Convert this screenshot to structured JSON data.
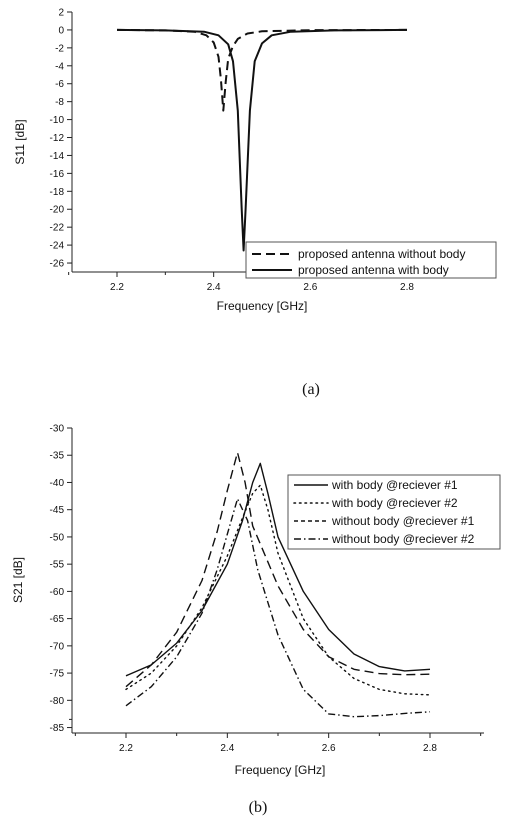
{
  "chart_data": [
    {
      "type": "line",
      "caption": "(a)",
      "xlabel": "Frequency [GHz]",
      "ylabel": "S11 [dB]",
      "xlim": [
        2.1,
        2.9
      ],
      "ylim": [
        -27,
        2
      ],
      "xticks": [
        2.2,
        2.4,
        2.6,
        2.8
      ],
      "xtick_labels": [
        "2.2",
        "2.4",
        "2.6",
        "2.8"
      ],
      "yticks": [
        2,
        0,
        -2,
        -4,
        -6,
        -8,
        -10,
        -12,
        -14,
        -16,
        -18,
        -20,
        -22,
        -24,
        -26
      ],
      "ytick_labels": [
        "2",
        "0",
        "-2",
        "-4",
        "-6",
        "-8",
        "-10",
        "-12",
        "-14",
        "-16",
        "-18",
        "-20",
        "-22",
        "-24",
        "-26"
      ],
      "legend_position": "bottom-right",
      "series": [
        {
          "name": "proposed antenna without body",
          "style": "dashed",
          "color": "#111111",
          "points": [
            [
              2.2,
              0
            ],
            [
              2.3,
              -0.05
            ],
            [
              2.36,
              -0.2
            ],
            [
              2.385,
              -0.6
            ],
            [
              2.4,
              -1.4
            ],
            [
              2.41,
              -3.0
            ],
            [
              2.415,
              -5.5
            ],
            [
              2.42,
              -9.0
            ],
            [
              2.425,
              -5.8
            ],
            [
              2.43,
              -3.2
            ],
            [
              2.44,
              -1.8
            ],
            [
              2.45,
              -1.0
            ],
            [
              2.47,
              -0.4
            ],
            [
              2.5,
              -0.15
            ],
            [
              2.6,
              -0.03
            ],
            [
              2.8,
              0
            ]
          ]
        },
        {
          "name": "proposed antenna with body",
          "style": "solid",
          "color": "#111111",
          "points": [
            [
              2.2,
              0
            ],
            [
              2.3,
              -0.05
            ],
            [
              2.38,
              -0.2
            ],
            [
              2.41,
              -0.6
            ],
            [
              2.43,
              -1.6
            ],
            [
              2.44,
              -3.5
            ],
            [
              2.45,
              -9.0
            ],
            [
              2.458,
              -20.0
            ],
            [
              2.462,
              -24.6
            ],
            [
              2.466,
              -20.0
            ],
            [
              2.475,
              -9.0
            ],
            [
              2.485,
              -3.5
            ],
            [
              2.5,
              -1.5
            ],
            [
              2.52,
              -0.6
            ],
            [
              2.56,
              -0.2
            ],
            [
              2.65,
              -0.05
            ],
            [
              2.8,
              0
            ]
          ]
        }
      ]
    },
    {
      "type": "line",
      "caption": "(b)",
      "xlabel": "Frequency [GHz]",
      "ylabel": "S21 [dB]",
      "xlim": [
        2.1,
        2.9
      ],
      "ylim": [
        -86,
        -30
      ],
      "xticks": [
        2.2,
        2.4,
        2.6,
        2.8
      ],
      "xtick_labels": [
        "2.2",
        "2.4",
        "2.6",
        "2.8"
      ],
      "yticks": [
        -30,
        -35,
        -40,
        -45,
        -50,
        -55,
        -60,
        -65,
        -70,
        -75,
        -80,
        -85
      ],
      "ytick_labels": [
        "-30",
        "-35",
        "-40",
        "-45",
        "-50",
        "-55",
        "-60",
        "-65",
        "-70",
        "-75",
        "-80",
        "-85"
      ],
      "legend_position": "top-right",
      "series": [
        {
          "name": "with body @reciever #1",
          "style": "solid",
          "color": "#111111",
          "points": [
            [
              2.2,
              -75.5
            ],
            [
              2.25,
              -73.5
            ],
            [
              2.3,
              -69.5
            ],
            [
              2.35,
              -63.5
            ],
            [
              2.4,
              -55
            ],
            [
              2.43,
              -47
            ],
            [
              2.45,
              -40
            ],
            [
              2.465,
              -36.5
            ],
            [
              2.48,
              -42
            ],
            [
              2.5,
              -50
            ],
            [
              2.55,
              -60
            ],
            [
              2.6,
              -67
            ],
            [
              2.65,
              -71.5
            ],
            [
              2.7,
              -73.8
            ],
            [
              2.75,
              -74.6
            ],
            [
              2.8,
              -74.3
            ]
          ]
        },
        {
          "name": "with body @reciever #2",
          "style": "dotted",
          "color": "#111111",
          "points": [
            [
              2.2,
              -78
            ],
            [
              2.25,
              -75
            ],
            [
              2.3,
              -70
            ],
            [
              2.35,
              -63
            ],
            [
              2.4,
              -53.5
            ],
            [
              2.43,
              -46.5
            ],
            [
              2.45,
              -42
            ],
            [
              2.465,
              -40.5
            ],
            [
              2.48,
              -45
            ],
            [
              2.5,
              -53
            ],
            [
              2.55,
              -65
            ],
            [
              2.6,
              -72
            ],
            [
              2.65,
              -76
            ],
            [
              2.7,
              -78
            ],
            [
              2.75,
              -78.8
            ],
            [
              2.8,
              -79
            ]
          ]
        },
        {
          "name": "without body @reciever #1",
          "style": "dashed",
          "color": "#111111",
          "points": [
            [
              2.2,
              -77.5
            ],
            [
              2.25,
              -73.5
            ],
            [
              2.3,
              -67.5
            ],
            [
              2.35,
              -58
            ],
            [
              2.38,
              -49
            ],
            [
              2.4,
              -41.5
            ],
            [
              2.42,
              -34.5
            ],
            [
              2.435,
              -40
            ],
            [
              2.45,
              -48
            ],
            [
              2.5,
              -59
            ],
            [
              2.55,
              -67
            ],
            [
              2.6,
              -72
            ],
            [
              2.65,
              -74.3
            ],
            [
              2.7,
              -75.1
            ],
            [
              2.75,
              -75.3
            ],
            [
              2.8,
              -75.2
            ]
          ]
        },
        {
          "name": "without body @reciever #2",
          "style": "dashdot",
          "color": "#111111",
          "points": [
            [
              2.2,
              -81
            ],
            [
              2.25,
              -77.5
            ],
            [
              2.3,
              -72
            ],
            [
              2.35,
              -64
            ],
            [
              2.38,
              -56
            ],
            [
              2.4,
              -49.5
            ],
            [
              2.42,
              -43
            ],
            [
              2.44,
              -47
            ],
            [
              2.46,
              -56
            ],
            [
              2.5,
              -68
            ],
            [
              2.55,
              -78
            ],
            [
              2.6,
              -82.5
            ],
            [
              2.65,
              -83
            ],
            [
              2.7,
              -82.8
            ],
            [
              2.75,
              -82.4
            ],
            [
              2.8,
              -82.1
            ]
          ]
        }
      ]
    }
  ]
}
